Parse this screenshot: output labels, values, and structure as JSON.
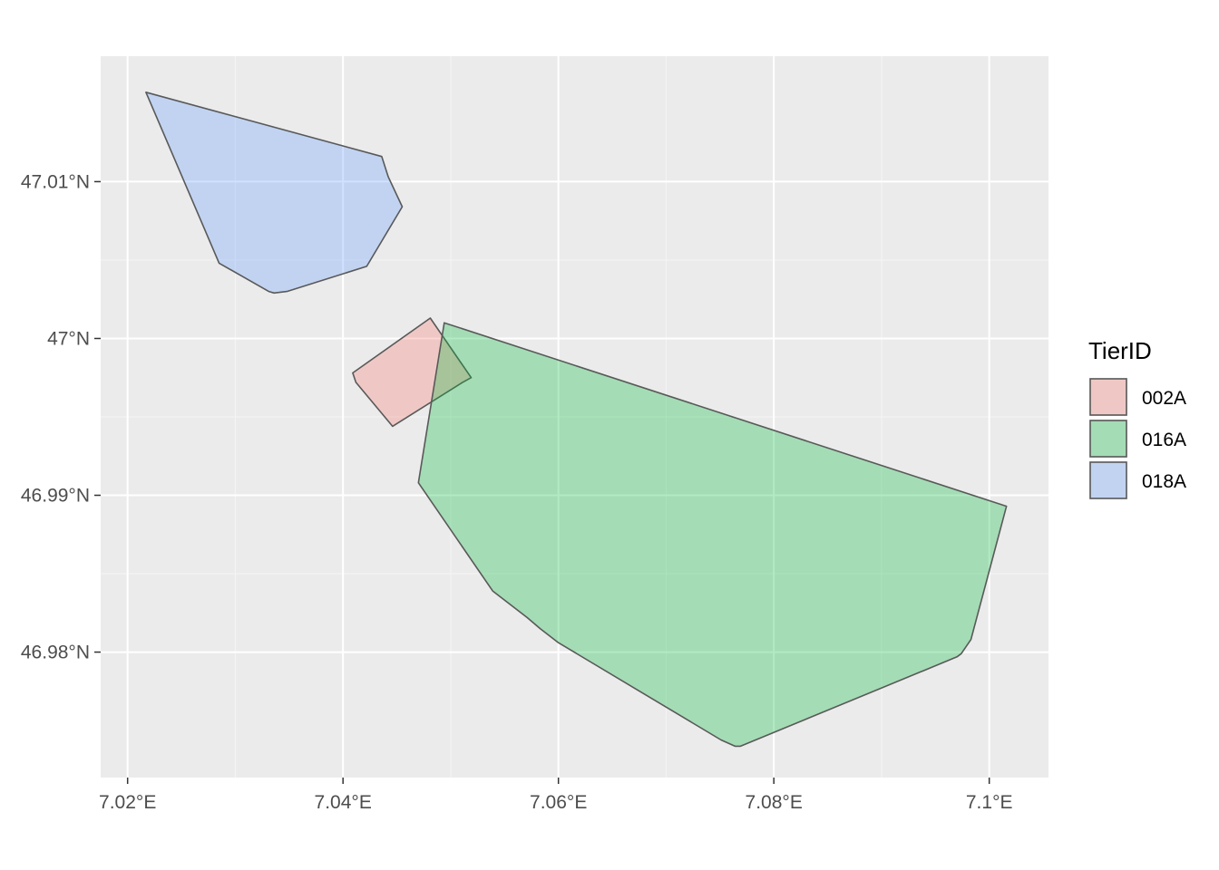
{
  "chart_data": {
    "type": "map",
    "x_ticks": [
      {
        "value": 7.02,
        "label": "7.02°E"
      },
      {
        "value": 7.04,
        "label": "7.04°E"
      },
      {
        "value": 7.06,
        "label": "7.06°E"
      },
      {
        "value": 7.08,
        "label": "7.08°E"
      },
      {
        "value": 7.1,
        "label": "7.1°E"
      }
    ],
    "y_ticks": [
      {
        "value": 47.01,
        "label": "47.01°N"
      },
      {
        "value": 47.0,
        "label": "47°N"
      },
      {
        "value": 46.99,
        "label": "46.99°N"
      },
      {
        "value": 46.98,
        "label": "46.98°N"
      }
    ],
    "xlim": [
      7.0175,
      7.1055
    ],
    "ylim": [
      46.972,
      47.018
    ],
    "grid": true,
    "legend": {
      "title": "TierID",
      "position": "right",
      "entries": [
        {
          "label": "002A",
          "color": "#F8766D"
        },
        {
          "label": "016A",
          "color": "#00BA38"
        },
        {
          "label": "018A",
          "color": "#619CFF"
        }
      ]
    },
    "fill_alpha": 0.3,
    "outline_color": "#595959",
    "polygons": [
      {
        "name": "018A",
        "color": "#619CFF",
        "coords": [
          [
            7.0217,
            47.0157
          ],
          [
            7.0436,
            47.0116
          ],
          [
            7.0442,
            47.0103
          ],
          [
            7.0455,
            47.0084
          ],
          [
            7.0422,
            47.0046
          ],
          [
            7.0348,
            47.003
          ],
          [
            7.0336,
            47.0029
          ],
          [
            7.0331,
            47.003
          ],
          [
            7.0285,
            47.0048
          ],
          [
            7.0217,
            47.0157
          ]
        ]
      },
      {
        "name": "002A",
        "color": "#F8766D",
        "coords": [
          [
            7.0481,
            47.0013
          ],
          [
            7.0519,
            46.9975
          ],
          [
            7.0511,
            46.9972
          ],
          [
            7.0446,
            46.9944
          ],
          [
            7.0412,
            46.9972
          ],
          [
            7.0409,
            46.9978
          ],
          [
            7.0481,
            47.0013
          ]
        ]
      },
      {
        "name": "016A",
        "color": "#00BA38",
        "coords": [
          [
            7.0494,
            47.001
          ],
          [
            7.1016,
            46.9893
          ],
          [
            7.0983,
            46.9808
          ],
          [
            7.0974,
            46.9799
          ],
          [
            7.097,
            46.9797
          ],
          [
            7.0769,
            46.974
          ],
          [
            7.0764,
            46.974
          ],
          [
            7.0751,
            46.9744
          ],
          [
            7.06,
            46.9806
          ],
          [
            7.0583,
            46.9815
          ],
          [
            7.0571,
            46.9822
          ],
          [
            7.0539,
            46.9839
          ],
          [
            7.047,
            46.9908
          ],
          [
            7.0494,
            47.001
          ]
        ]
      }
    ]
  }
}
